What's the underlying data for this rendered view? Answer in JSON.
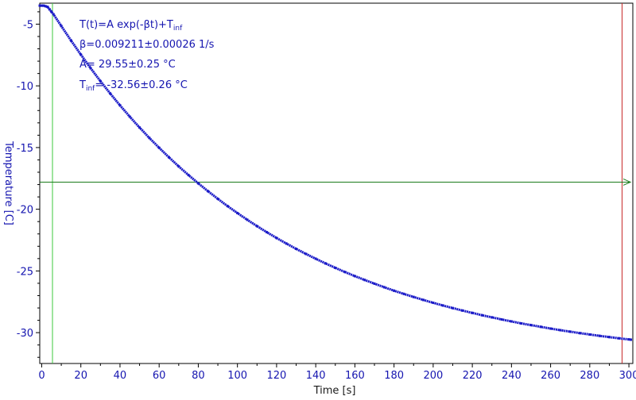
{
  "chart_data": {
    "type": "scatter",
    "xlabel": "Time [s]",
    "ylabel": "Temperature [C]",
    "xlim": [
      -1,
      302
    ],
    "ylim": [
      -32.5,
      -3.3
    ],
    "x_ticks": [
      0,
      20,
      40,
      60,
      80,
      100,
      120,
      140,
      160,
      180,
      200,
      220,
      240,
      260,
      280,
      300
    ],
    "x_tick_labels": [
      "0",
      "20",
      "40",
      "60",
      "80",
      "100",
      "120",
      "140",
      "160",
      "180",
      "200",
      "220",
      "240",
      "260",
      "280",
      "300"
    ],
    "y_ticks": [
      -5,
      -10,
      -15,
      -20,
      -25,
      -30
    ],
    "y_tick_labels": [
      "-5",
      "-10",
      "-15",
      "-20",
      "-25",
      "-30"
    ],
    "grid": false,
    "annotations": {
      "formula_main": "T(t)=A exp(-βt)+T",
      "formula_sub": "inf",
      "beta": "β=0.009211±0.00026 1/s",
      "A": "A= 29.55±0.25 °C",
      "tinf_main": "T",
      "tinf_sub": "inf",
      "tinf_value": "= -32.56±0.26 °C"
    },
    "markers": {
      "vertical_green_x": 5.5,
      "vertical_red_x": 296.5,
      "horizontal_y": -17.8
    },
    "series": [
      {
        "x": [
          -1,
          0,
          1,
          2,
          3,
          4,
          5,
          6,
          10,
          15,
          20,
          25,
          30,
          35,
          40,
          45,
          50,
          55,
          60,
          65,
          70,
          75,
          80,
          85,
          90,
          95,
          100,
          105,
          110,
          115,
          120,
          125,
          130,
          135,
          140,
          145,
          150,
          155,
          160,
          165,
          170,
          175,
          180,
          185,
          190,
          195,
          200,
          205,
          210,
          215,
          220,
          225,
          230,
          235,
          240,
          245,
          250,
          255,
          260,
          265,
          270,
          275,
          280,
          285,
          290,
          295,
          300,
          301
        ],
        "values": [
          -3.5,
          -3.5,
          -3.5,
          -3.55,
          -3.6,
          -3.8,
          -4.0,
          -4.2,
          -5.15,
          -6.33,
          -7.47,
          -8.57,
          -9.62,
          -10.62,
          -11.58,
          -12.5,
          -13.38,
          -14.22,
          -15.02,
          -15.79,
          -16.53,
          -17.23,
          -17.9,
          -18.54,
          -19.16,
          -19.75,
          -20.31,
          -20.85,
          -21.37,
          -21.86,
          -22.33,
          -22.78,
          -23.21,
          -23.62,
          -24.01,
          -24.39,
          -24.75,
          -25.09,
          -25.42,
          -25.73,
          -26.03,
          -26.32,
          -26.6,
          -26.86,
          -27.11,
          -27.35,
          -27.58,
          -27.8,
          -28.01,
          -28.21,
          -28.4,
          -28.59,
          -28.76,
          -28.93,
          -29.09,
          -29.25,
          -29.39,
          -29.53,
          -29.67,
          -29.8,
          -29.92,
          -30.04,
          -30.15,
          -30.26,
          -30.36,
          -30.46,
          -30.55,
          -30.57
        ]
      }
    ]
  },
  "colors": {
    "data": "#1b1bc8",
    "axis_text": "#1515b0",
    "green_line": "#3cc83c",
    "red_line": "#c82828",
    "horizontal_line": "#1a7a1a",
    "frame": "#000000"
  }
}
